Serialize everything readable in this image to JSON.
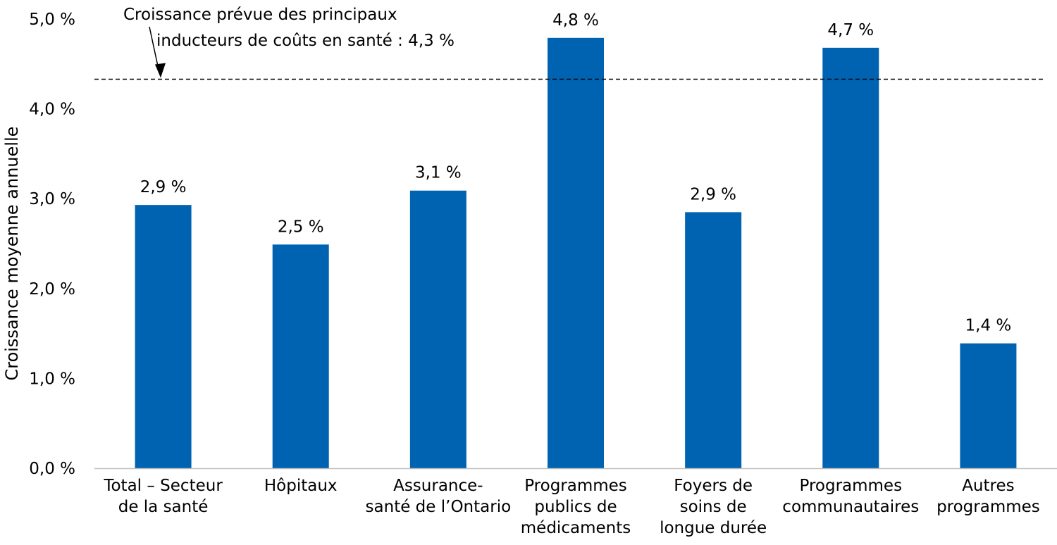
{
  "chart_data": {
    "type": "bar",
    "ylabel": "Croissance moyenne annuelle",
    "ylim": [
      0,
      5
    ],
    "yticks": [
      0,
      1,
      2,
      3,
      4,
      5
    ],
    "ytick_labels": [
      "0,0 %",
      "1,0 %",
      "2,0 %",
      "3,0 %",
      "4,0 %",
      "5,0 %"
    ],
    "grid": false,
    "bar_color": "#0063B1",
    "categories": [
      [
        "Total – Secteur",
        "de la santé"
      ],
      [
        "Hôpitaux"
      ],
      [
        "Assurance-",
        "santé de l’Ontario"
      ],
      [
        "Programmes",
        "publics de",
        "médicaments"
      ],
      [
        "Foyers de",
        "soins de",
        "longue durée"
      ],
      [
        "Programmes",
        "communautaires"
      ],
      [
        "Autres",
        "programmes"
      ]
    ],
    "values": [
      2.93,
      2.49,
      3.09,
      4.79,
      2.85,
      4.68,
      1.39
    ],
    "data_labels": [
      "2,9 %",
      "2,5 %",
      "3,1 %",
      "4,8 %",
      "2,9 %",
      "4,7 %",
      "1,4 %"
    ],
    "reference_line": {
      "value": 4.33,
      "style": "dashed",
      "label_lines": [
        "Croissance prévue des principaux",
        "inducteurs de coûts en santé : 4,3 %"
      ]
    }
  }
}
